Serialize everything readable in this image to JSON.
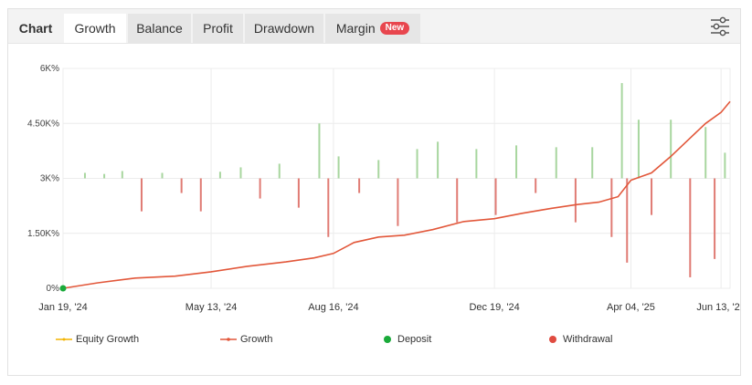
{
  "tabs": [
    {
      "label": "Chart",
      "state": "title"
    },
    {
      "label": "Growth",
      "state": "active"
    },
    {
      "label": "Balance",
      "state": "normal"
    },
    {
      "label": "Profit",
      "state": "normal"
    },
    {
      "label": "Drawdown",
      "state": "normal"
    },
    {
      "label": "Margin",
      "state": "normal",
      "badge": "New"
    }
  ],
  "settings_icon": "sliders-icon",
  "colors": {
    "growth": "#e2573a",
    "equity": "#f4b400",
    "deposit": "#1aaa3a",
    "withdrawal": "#e04b40",
    "positive_bar": "#a8d69f",
    "negative_bar": "#e07b74",
    "badge": "#e8464e"
  },
  "chart_data": {
    "type": "line",
    "y_ticks": [
      "0%",
      "1.50K%",
      "3K%",
      "4.50K%",
      "6K%"
    ],
    "y_tick_values": [
      0,
      1500,
      3000,
      4500,
      6000
    ],
    "ylim": [
      0,
      6000
    ],
    "x_ticks": [
      "Jan 19, '24",
      "May 13, '24",
      "Aug 16, '24",
      "Dec 19, '24",
      "Apr 04, '25",
      "Jun 13, '25"
    ],
    "x_tick_dates": [
      "2024-01-19",
      "2024-05-13",
      "2024-08-16",
      "2024-12-19",
      "2025-04-04",
      "2025-06-13"
    ],
    "grid": true,
    "legend_position": "bottom",
    "series": [
      {
        "name": "Growth",
        "x": [
          "2024-01-19",
          "2024-02-15",
          "2024-03-15",
          "2024-04-15",
          "2024-05-13",
          "2024-06-10",
          "2024-07-10",
          "2024-08-01",
          "2024-08-16",
          "2024-09-01",
          "2024-09-20",
          "2024-10-10",
          "2024-11-01",
          "2024-11-25",
          "2024-12-19",
          "2025-01-10",
          "2025-02-01",
          "2025-02-20",
          "2025-03-10",
          "2025-03-25",
          "2025-04-04",
          "2025-04-20",
          "2025-05-05",
          "2025-05-20",
          "2025-06-01",
          "2025-06-13",
          "2025-06-20"
        ],
        "values": [
          0,
          150,
          280,
          330,
          450,
          600,
          720,
          830,
          950,
          1250,
          1400,
          1450,
          1600,
          1820,
          1900,
          2050,
          2180,
          2280,
          2350,
          2500,
          2950,
          3150,
          3600,
          4100,
          4500,
          4800,
          5100
        ]
      },
      {
        "name": "Equity Growth",
        "x": [],
        "values": []
      }
    ],
    "daily_profit_bars": {
      "baseline": 3000,
      "x": [
        "2024-02-05",
        "2024-02-20",
        "2024-03-05",
        "2024-03-20",
        "2024-04-05",
        "2024-04-20",
        "2024-05-05",
        "2024-05-20",
        "2024-06-05",
        "2024-06-20",
        "2024-07-05",
        "2024-07-20",
        "2024-08-05",
        "2024-08-12",
        "2024-08-20",
        "2024-09-05",
        "2024-09-20",
        "2024-10-05",
        "2024-10-20",
        "2024-11-05",
        "2024-11-20",
        "2024-12-05",
        "2024-12-20",
        "2025-01-05",
        "2025-01-20",
        "2025-02-05",
        "2025-02-20",
        "2025-03-05",
        "2025-03-20",
        "2025-03-28",
        "2025-04-01",
        "2025-04-10",
        "2025-04-20",
        "2025-05-05",
        "2025-05-20",
        "2025-06-01",
        "2025-06-08",
        "2025-06-16"
      ],
      "values": [
        150,
        120,
        200,
        -900,
        150,
        -400,
        -900,
        180,
        300,
        -550,
        400,
        -800,
        1500,
        -1600,
        600,
        -400,
        500,
        -1300,
        800,
        1000,
        -1200,
        800,
        -1000,
        900,
        -400,
        850,
        -1200,
        850,
        -1600,
        2600,
        -2300,
        1600,
        -1000,
        1600,
        -2700,
        1400,
        -2200,
        700
      ]
    },
    "deposits": [
      {
        "x": "2024-01-19",
        "y": 0
      }
    ],
    "withdrawals": []
  },
  "legend": [
    {
      "label": "Equity Growth",
      "color_key": "equity",
      "marker": "line"
    },
    {
      "label": "Growth",
      "color_key": "growth",
      "marker": "line-dot"
    },
    {
      "label": "Deposit",
      "color_key": "deposit",
      "marker": "dot"
    },
    {
      "label": "Withdrawal",
      "color_key": "withdrawal",
      "marker": "dot"
    }
  ]
}
